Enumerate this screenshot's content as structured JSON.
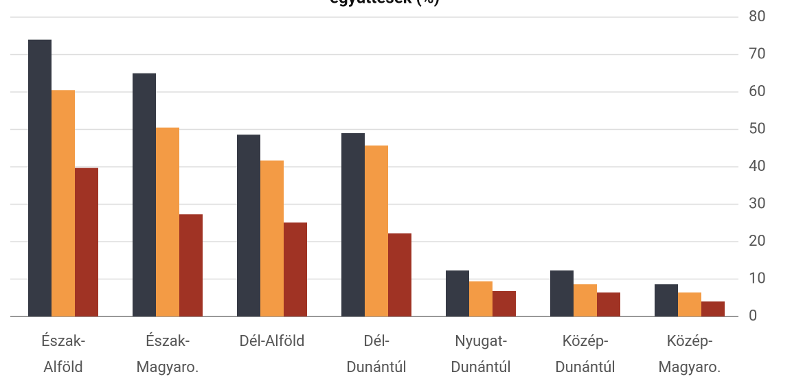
{
  "chart_data": {
    "type": "bar",
    "title": "együttesek (%)",
    "categories": [
      [
        "Észak-",
        "Alföld"
      ],
      [
        "Észak-",
        "Magyaro."
      ],
      [
        "Dél-Alföld"
      ],
      [
        "Dél-",
        "Dunántúl"
      ],
      [
        "Nyugat-",
        "Dunántúl"
      ],
      [
        "Közép-",
        "Dunántúl"
      ],
      [
        "Közép-",
        "Magyaro."
      ]
    ],
    "series": [
      {
        "color": "#363a45",
        "values": [
          74,
          65,
          48.6,
          49,
          12.3,
          12.3,
          8.6
        ]
      },
      {
        "color": "#f39b45",
        "values": [
          60.5,
          50.5,
          41.7,
          45.7,
          9.4,
          8.6,
          6.4
        ]
      },
      {
        "color": "#a03324",
        "values": [
          39.7,
          27.3,
          25.1,
          22.2,
          6.8,
          6.4,
          4
        ]
      }
    ],
    "ylim": [
      0,
      80
    ],
    "yticks": [
      0,
      10,
      20,
      30,
      40,
      50,
      60,
      70,
      80
    ],
    "grid": true,
    "y_axis_side": "right"
  }
}
